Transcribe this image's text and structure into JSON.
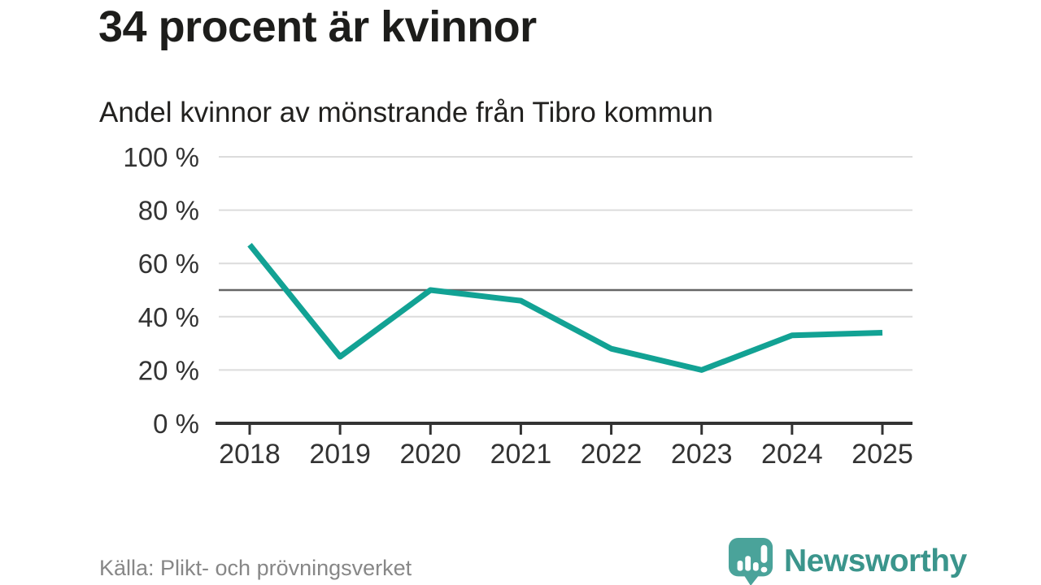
{
  "colors": {
    "line": "#12a294",
    "grid": "#dcdcdc",
    "reference_line": "#666666",
    "axis": "#333333",
    "text": "#333333",
    "source_text": "#878787",
    "brand_teal": "#3b958c",
    "brand_icon_teal": "#4aa39a"
  },
  "chart_data": {
    "type": "line",
    "title": "34 procent är kvinnor",
    "subtitle": "Andel kvinnor av mönstrande från Tibro kommun",
    "x": [
      2018,
      2019,
      2020,
      2021,
      2022,
      2023,
      2024,
      2025
    ],
    "xtick_labels": [
      "2018",
      "2019",
      "2020",
      "2021",
      "2022",
      "2023",
      "2024",
      "2025"
    ],
    "series": [
      {
        "name": "Andel kvinnor av mönstrande från Tibro kommun (%)",
        "values": [
          67,
          25,
          50,
          46,
          28,
          20,
          33,
          34
        ]
      }
    ],
    "ylim": [
      0,
      100
    ],
    "yticks": [
      0,
      20,
      40,
      60,
      80,
      100
    ],
    "ytick_labels": [
      "0 %",
      "20 %",
      "40 %",
      "60 %",
      "80 %",
      "100 %"
    ],
    "reference_line": 50,
    "grid": "horizontal",
    "legend": "none"
  },
  "footer": {
    "source": "Källa: Plikt- och prövningsverket",
    "brand": "Newsworthy"
  }
}
